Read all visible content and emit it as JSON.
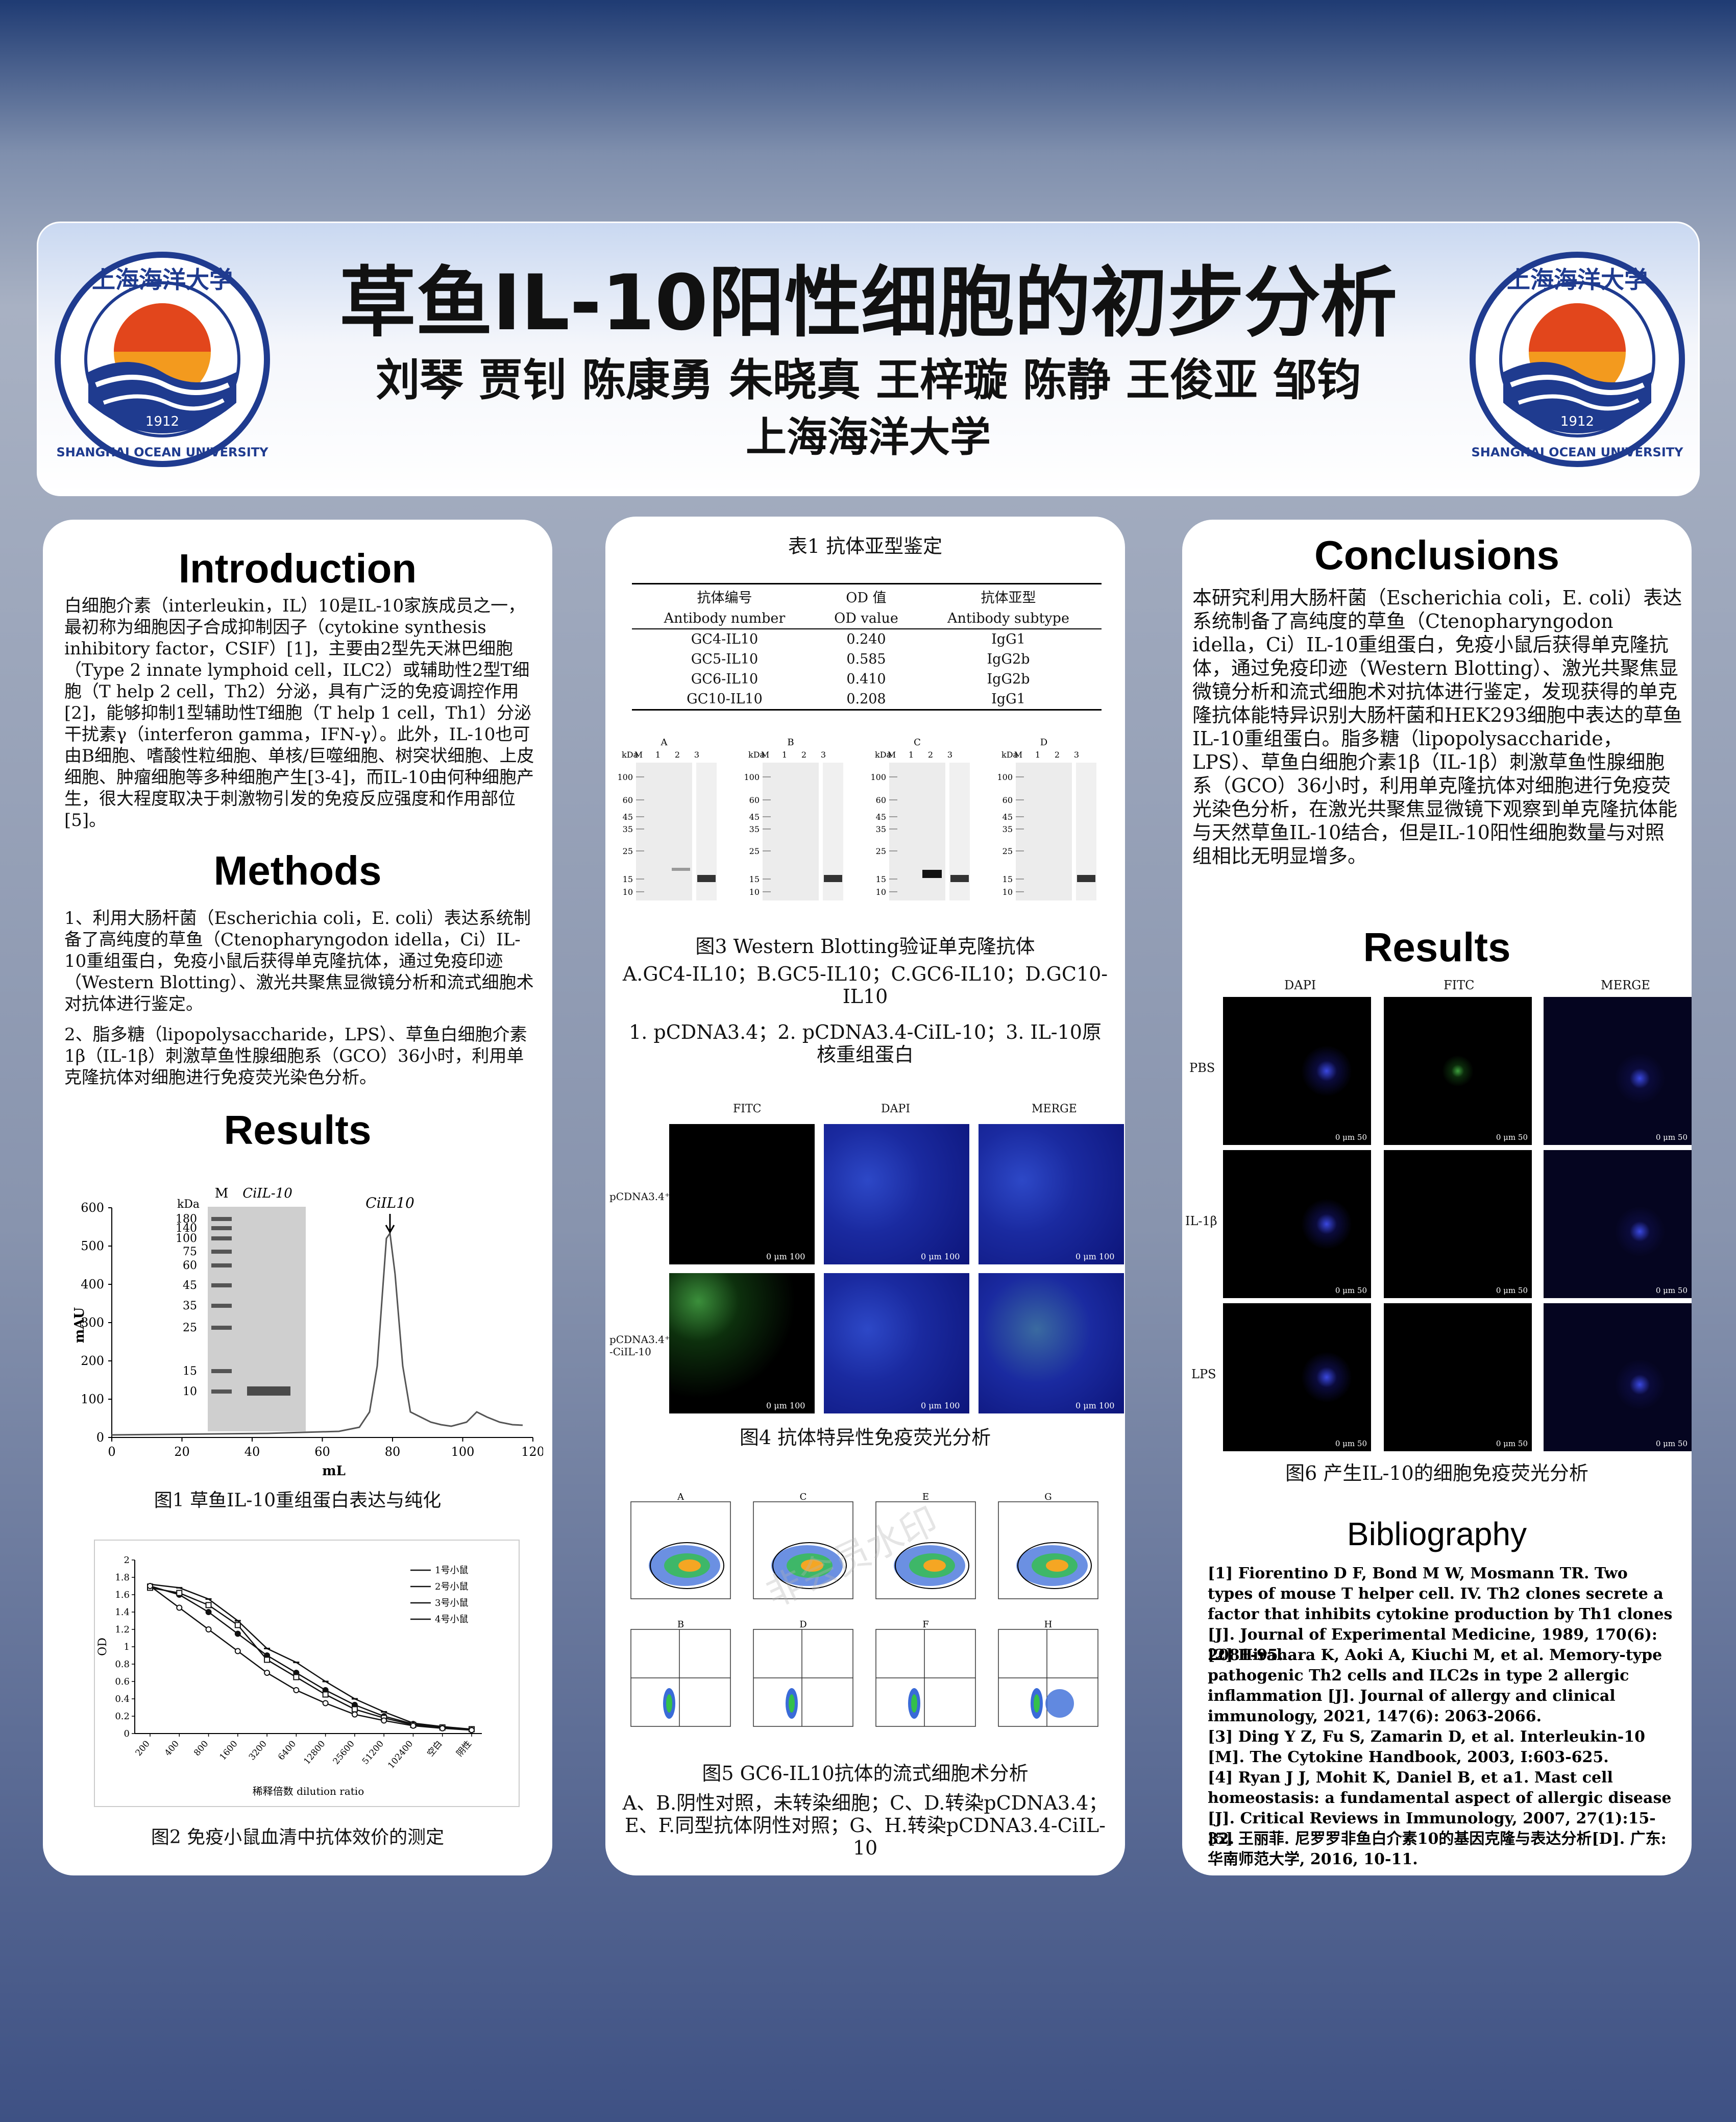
{
  "header": {
    "title": "草鱼IL-10阳性细胞的初步分析",
    "authors": "刘琴 贾钊 陈康勇 朱晓真 王梓璇 陈静 王俊亚 邹钧",
    "affiliation": "上海海洋大学",
    "logo": {
      "chars": "上海海洋大学",
      "year": "1912",
      "english": "SHANGHAI OCEAN UNIVERSITY"
    }
  },
  "left": {
    "intro_heading": "Introduction",
    "intro_text": "白细胞介素（interleukin，IL）10是IL-10家族成员之一，最初称为细胞因子合成抑制因子（cytokine synthesis inhibitory factor，CSIF）[1]，主要由2型先天淋巴细胞（Type 2 innate lymphoid cell，ILC2）或辅助性2型T细胞（T help 2 cell，Th2）分泌，具有广泛的免疫调控作用[2]，能够抑制1型辅助性T细胞（T help 1 cell，Th1）分泌干扰素γ（interferon gamma，IFN-γ）。此外，IL-10也可由B细胞、嗜酸性粒细胞、单核/巨噬细胞、树突状细胞、上皮细胞、肿瘤细胞等多种细胞产生[3-4]，而IL-10由何种细胞产生，很大程度取决于刺激物引发的免疫反应强度和作用部位[5]。",
    "methods_heading": "Methods",
    "methods_1": "1、利用大肠杆菌（Escherichia coli，E. coli）表达系统制备了高纯度的草鱼（Ctenopharyngodon idella，Ci）IL-10重组蛋白，免疫小鼠后获得单克隆抗体，通过免疫印迹（Western Blotting）、激光共聚焦显微镜分析和流式细胞术对抗体进行鉴定。",
    "methods_2": "2、脂多糖（lipopolysaccharide，LPS）、草鱼白细胞介素1β（IL-1β）刺激草鱼性腺细胞系（GCO）36小时，利用单克隆抗体对细胞进行免疫荧光染色分析。",
    "results_heading": "Results",
    "fig1_caption": "图1 草鱼IL-10重组蛋白表达与纯化",
    "fig2_caption": "图2 免疫小鼠血清中抗体效价的测定"
  },
  "fig1": {
    "gel_labels": {
      "m": "M",
      "lane": "CiIL-10",
      "kda": "kDa"
    },
    "kda_marks": [
      "180",
      "140",
      "100",
      "75",
      "60",
      "45",
      "35",
      "25",
      "15",
      "10"
    ],
    "peak_label": "CiIL10",
    "ylabel": "mAU",
    "xlabel": "mL",
    "yticks": [
      "0",
      "100",
      "200",
      "300",
      "400",
      "500",
      "600"
    ],
    "xticks": [
      "0",
      "20",
      "40",
      "60",
      "80",
      "100",
      "120"
    ]
  },
  "chart_data": {
    "type": "line",
    "categories": [
      "200",
      "400",
      "800",
      "1600",
      "3200",
      "6400",
      "12800",
      "25600",
      "51200",
      "102400",
      "空白",
      "阴性"
    ],
    "xlabel": "稀释倍数 dilution ratio",
    "ylabel": "OD",
    "ylim": [
      0,
      2
    ],
    "yticks": [
      "0",
      "0.2",
      "0.4",
      "0.6",
      "0.8",
      "1",
      "1.2",
      "1.4",
      "1.6",
      "1.8",
      "2"
    ],
    "series": [
      {
        "name": "1号小鼠",
        "values": [
          1.72,
          1.68,
          1.55,
          1.3,
          0.98,
          0.82,
          0.6,
          0.4,
          0.25,
          0.12,
          0.08,
          0.05
        ]
      },
      {
        "name": "2号小鼠",
        "values": [
          1.7,
          1.6,
          1.4,
          1.15,
          0.9,
          0.7,
          0.5,
          0.33,
          0.2,
          0.11,
          0.07,
          0.05
        ]
      },
      {
        "name": "3号小鼠",
        "values": [
          1.68,
          1.62,
          1.48,
          1.25,
          0.85,
          0.65,
          0.45,
          0.28,
          0.18,
          0.1,
          0.07,
          0.05
        ]
      },
      {
        "name": "4号小鼠",
        "values": [
          1.7,
          1.45,
          1.2,
          0.95,
          0.7,
          0.5,
          0.35,
          0.22,
          0.15,
          0.09,
          0.06,
          0.04
        ]
      }
    ]
  },
  "middle": {
    "table_title": "表1 抗体亚型鉴定",
    "table_headers_cn": [
      "抗体编号",
      "OD 值",
      "抗体亚型"
    ],
    "table_headers_en": [
      "Antibody number",
      "OD value",
      "Antibody subtype"
    ],
    "table_rows": [
      [
        "GC4-IL10",
        "0.240",
        "IgG1"
      ],
      [
        "GC5-IL10",
        "0.585",
        "IgG2b"
      ],
      [
        "GC6-IL10",
        "0.410",
        "IgG2b"
      ],
      [
        "GC10-IL10",
        "0.208",
        "IgG1"
      ]
    ],
    "blot_panels": [
      "A",
      "B",
      "C",
      "D"
    ],
    "blot_kda": [
      "100",
      "60",
      "45",
      "35",
      "25",
      "15",
      "10"
    ],
    "blot_lanes": [
      "M",
      "1",
      "2",
      "3"
    ],
    "fig3_caption": "图3 Western Blotting验证单克隆抗体",
    "fig3_sub1": "A.GC4-IL10；B.GC5-IL10；C.GC6-IL10；D.GC10-IL10",
    "fig3_sub2": "1. pCDNA3.4；2. pCDNA3.4-CiIL-10；3. IL-10原核重组蛋白",
    "fig4_cols": [
      "FITC",
      "DAPI",
      "MERGE"
    ],
    "fig4_rows": [
      "pCDNA3.4⁺",
      "pCDNA3.4⁺ -CiIL-10"
    ],
    "fig4_scale": "0    μm 100",
    "fig4_caption": "图4 抗体特异性免疫荧光分析",
    "fig5_top": [
      "A",
      "C",
      "E",
      "G"
    ],
    "fig5_bottom": [
      "B",
      "D",
      "F",
      "H"
    ],
    "fig5_caption": "图5 GC6-IL10抗体的流式细胞术分析",
    "fig5_sub": "A、B.阴性对照，未转染细胞；C、D.转染pCDNA3.4；E、F.同型抗体阴性对照；G、H.转染pCDNA3.4-CiIL-10",
    "watermark": "非会员水印"
  },
  "right": {
    "conclusions_heading": "Conclusions",
    "conclusions_text": "本研究利用大肠杆菌（Escherichia coli，E. coli）表达系统制备了高纯度的草鱼（Ctenopharyngodon idella，Ci）IL-10重组蛋白，免疫小鼠后获得单克隆抗体，通过免疫印迹（Western Blotting）、激光共聚焦显微镜分析和流式细胞术对抗体进行鉴定，发现获得的单克隆抗体能特异识别大肠杆菌和HEK293细胞中表达的草鱼IL-10重组蛋白。脂多糖（lipopolysaccharide，LPS）、草鱼白细胞介素1β（IL-1β）刺激草鱼性腺细胞系（GCO）36小时，利用单克隆抗体对细胞进行免疫荧光染色分析，在激光共聚焦显微镜下观察到单克隆抗体能与天然草鱼IL-10结合，但是IL-10阳性细胞数量与对照组相比无明显增多。",
    "results_heading": "Results",
    "fig6_cols": [
      "DAPI",
      "FITC",
      "MERGE"
    ],
    "fig6_rows": [
      "PBS",
      "IL-1β",
      "LPS"
    ],
    "fig6_scale": "0   μm  50",
    "fig6_caption": "图6 产生IL-10的细胞免疫荧光分析",
    "bib_heading": "Bibliography",
    "bib": [
      "[1]   Fiorentino D F, Bond M W, Mosmann TR. Two types of mouse T helper cell. IV. Th2 clones secrete a factor that inhibits cytokine production by Th1 clones [J]. Journal of Experimental Medicine, 1989, 170(6): 2081-95.",
      "[2]   Hirahara K, Aoki A, Kiuchi M, et al. Memory-type pathogenic Th2 cells and ILC2s in type 2 allergic inflammation [J]. Journal of allergy and clinical immunology, 2021, 147(6): 2063-2066.",
      "[3]   Ding Y Z, Fu S, Zamarin D, et al. Interleukin-10 [M]. The Cytokine Handbook, 2003, I:603-625.",
      "[4]   Ryan J J, Mohit K, Daniel B, et a1. Mast cell homeostasis: a fundamental aspect of allergic disease [J]. Critical Reviews in Immunology, 2007, 27(1):15-32.",
      "[5]   王丽菲. 尼罗罗非鱼白介素10的基因克隆与表达分析[D]. 广东: 华南师范大学, 2016, 10-11."
    ]
  },
  "colors": {
    "accent_blue": "#1f3b8f",
    "logo_orange": "#f39a1e",
    "logo_red": "#d8231c"
  }
}
